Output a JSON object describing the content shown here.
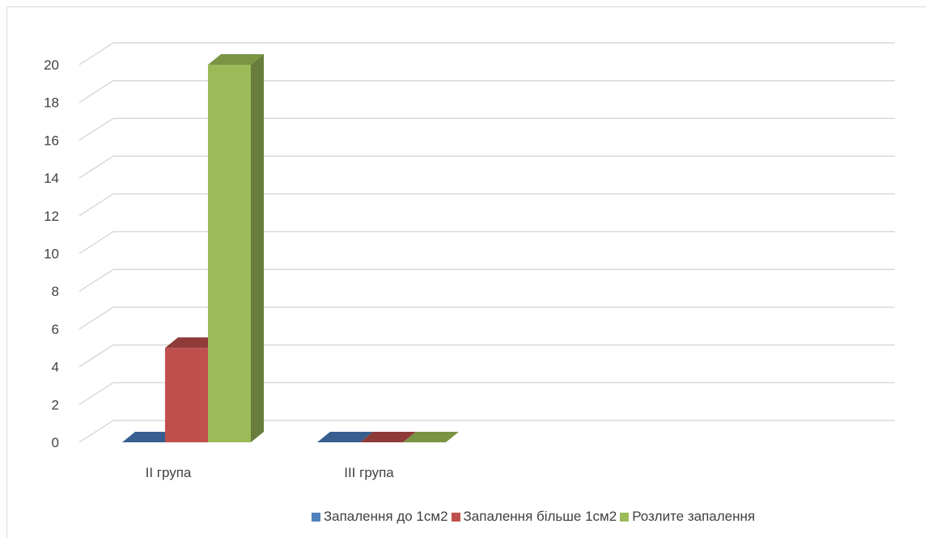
{
  "chart_data": {
    "type": "bar",
    "title": "",
    "xlabel": "",
    "ylabel": "",
    "categories": [
      "II група",
      "III група"
    ],
    "ylim": [
      0,
      20
    ],
    "yticks": [
      0,
      2,
      4,
      6,
      8,
      10,
      12,
      14,
      16,
      18,
      20
    ],
    "grid": true,
    "legend_position": "bottom",
    "series": [
      {
        "name": "Запалення до 1см2",
        "values": [
          0,
          0
        ],
        "color": "#4f81bd",
        "side_color": "#3a6596",
        "top_color": "#375e8e"
      },
      {
        "name": "Запалення більше 1см2",
        "values": [
          5,
          0
        ],
        "color": "#c0504d",
        "side_color": "#963c3a",
        "top_color": "#8f3b39"
      },
      {
        "name": "Розлите запалення",
        "values": [
          20,
          0
        ],
        "color": "#9bbb59",
        "side_color": "#687d3b",
        "top_color": "#7a9443"
      }
    ]
  }
}
